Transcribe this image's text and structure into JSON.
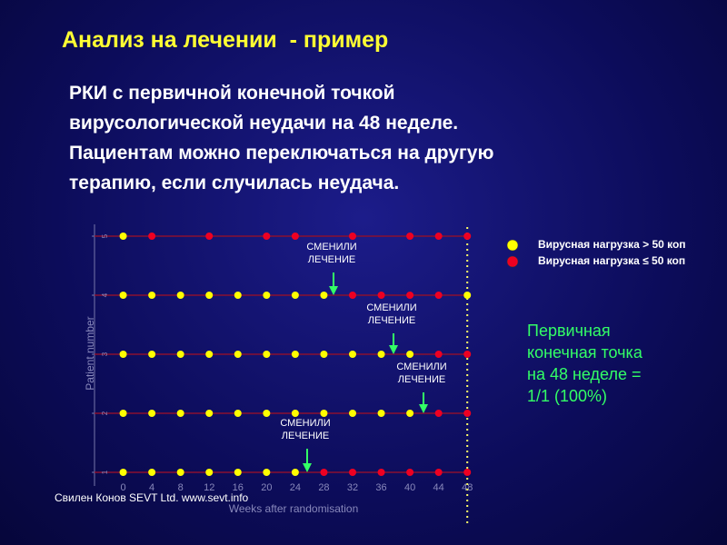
{
  "header": {
    "title": "Анализ на лечении  - пример"
  },
  "body": [
    "РКИ с первичной конечной точкой",
    "вирусологической неудачи на 48 неделе.",
    "Пациентам можно переключаться на другую",
    "терапию, если случилась неудача."
  ],
  "result": [
    "Первичная",
    "конечная точка",
    "на 48 неделе =",
    "1/1 (100%)"
  ],
  "credit": "Свилен Конов SEVT Ltd. www.sevt.info",
  "chart_data": {
    "type": "scatter",
    "x_label": "Weeks after randomisation",
    "y_label": "Patient number",
    "xlim": [
      -4,
      50
    ],
    "ylim": [
      0.8,
      5.2
    ],
    "xticks": [
      0,
      4,
      8,
      12,
      16,
      20,
      24,
      28,
      32,
      36,
      40,
      44,
      48
    ],
    "yticks": [
      1,
      2,
      3,
      4,
      5
    ],
    "series": [
      {
        "name": "Вирусная нагрузка > 50 коп",
        "color": "#ffff00",
        "x": [
          0,
          0,
          4,
          8,
          12,
          16,
          20,
          24,
          28,
          48,
          0,
          4,
          8,
          12,
          16,
          20,
          24,
          28,
          32,
          36,
          40,
          0,
          4,
          8,
          12,
          16,
          20,
          24,
          28,
          32,
          36,
          40,
          0,
          4,
          8,
          12,
          16,
          20,
          24
        ],
        "y": [
          5,
          4,
          4,
          4,
          4,
          4,
          4,
          4,
          4,
          4,
          3,
          3,
          3,
          3,
          3,
          3,
          3,
          3,
          3,
          3,
          3,
          2,
          2,
          2,
          2,
          2,
          2,
          2,
          2,
          2,
          2,
          2,
          1,
          1,
          1,
          1,
          1,
          1,
          1
        ]
      },
      {
        "name": "Вирусная нагрузка ≤ 50 коп",
        "color": "#ee0022",
        "x": [
          4,
          12,
          20,
          24,
          32,
          40,
          44,
          48,
          32,
          36,
          40,
          44,
          44,
          48,
          44,
          48,
          28,
          32,
          36,
          40,
          44,
          48
        ],
        "y": [
          5,
          5,
          5,
          5,
          5,
          5,
          5,
          5,
          4,
          4,
          4,
          4,
          3,
          3,
          2,
          2,
          1,
          1,
          1,
          1,
          1,
          1
        ]
      }
    ],
    "annotations": [
      "СМЕНИЛИ\nЛЕЧЕНИЕ",
      "СМЕНИЛИ\nЛЕЧЕНИЕ",
      "СМЕНИЛИ\nЛЕЧЕНИЕ",
      "СМЕНИЛИ\nЛЕЧЕНИЕ"
    ]
  }
}
